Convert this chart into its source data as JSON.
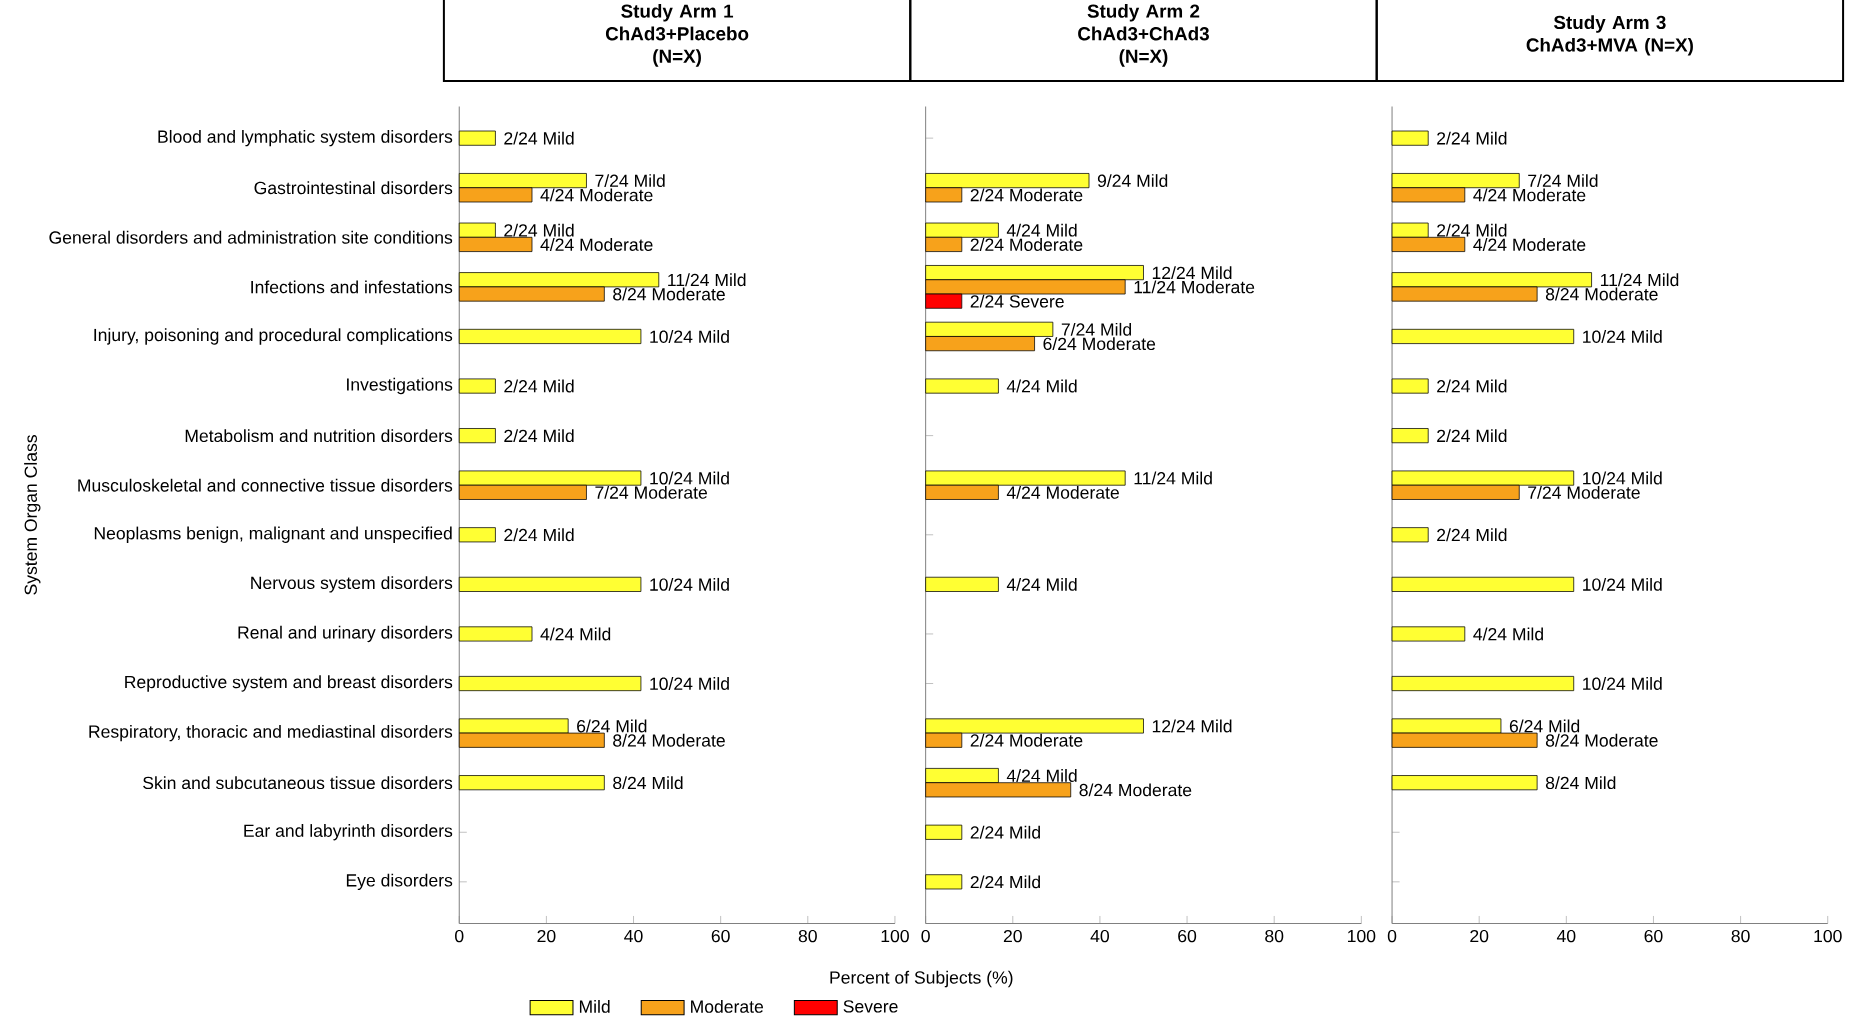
{
  "chart_data": [
    {
      "type": "bar",
      "orientation": "horizontal",
      "title": "Study Arm 1",
      "subtitle": "ChAd3+Placebo (N=X)",
      "ylabel": "System Organ Class",
      "categories": [
        "Blood and lymphatic system disorders",
        "Gastrointestinal disorders",
        "General disorders and administration site conditions",
        "Infections and infestations",
        "Injury, poisoning and procedural complications",
        "Investigations",
        "Metabolism and nutrition disorders",
        "Musculoskeletal and connective tissue disorders",
        "Neoplasms benign, malignant and unspecified",
        "Nervous system disorders",
        "Renal and urinary disorders",
        "Reproductive system and breast disorders",
        "Respiratory, thoracic and mediastinal disorders",
        "Skin and subcutaneous tissue disorders",
        "Ear and labyrinth disorders",
        "Eye disorders"
      ],
      "series": [
        {
          "color": "#ffff33",
          "values": [
            8.3,
            29.2,
            8.3,
            45.8,
            41.7,
            8.3,
            8.3,
            41.7,
            8.3,
            41.7,
            16.7,
            41.7,
            25,
            33.3,
            null,
            null
          ],
          "value_labels": [
            "2/24 Mild",
            "7/24 Mild",
            "2/24 Mild",
            "11/24 Mild",
            "10/24 Mild",
            "2/24 Mild",
            "2/24 Mild",
            "10/24 Mild",
            "2/24 Mild",
            "10/24 Mild",
            "4/24 Mild",
            "10/24 Mild",
            "6/24 Mild",
            "8/24 Mild",
            null,
            null
          ]
        },
        {
          "color": "#f7a21b",
          "values": [
            null,
            16.7,
            16.7,
            33.3,
            null,
            null,
            null,
            29.2,
            null,
            null,
            null,
            null,
            33.3,
            null,
            null,
            null
          ],
          "value_labels": [
            null,
            "4/24 Moderate",
            "4/24 Moderate",
            "8/24 Moderate",
            null,
            null,
            null,
            "7/24 Moderate",
            null,
            null,
            null,
            null,
            "8/24 Moderate",
            null,
            null,
            null
          ]
        }
      ],
      "xlim": [
        0,
        100
      ],
      "xticks": [
        0,
        20,
        40,
        60,
        80,
        100
      ]
    },
    {
      "type": "bar",
      "orientation": "horizontal",
      "title": "Study Arm 2",
      "subtitle": "ChAd3+ChAd3 (N=X)",
      "xlabel": "Percent of Subjects (%)",
      "categories": [
        null,
        null,
        null,
        null,
        null,
        null,
        null,
        null,
        null,
        null,
        null,
        null,
        null,
        null,
        null,
        null
      ],
      "series": [
        {
          "name": "Mild",
          "color": "#ffff33",
          "values": [
            null,
            37.5,
            16.7,
            50,
            29.2,
            16.7,
            null,
            45.8,
            null,
            16.7,
            null,
            null,
            50,
            16.7,
            8.3,
            8.3
          ],
          "value_labels": [
            null,
            "9/24 Mild",
            "4/24 Mild",
            "12/24 Mild",
            "7/24 Mild",
            "4/24 Mild",
            null,
            "11/24 Mild",
            null,
            "4/24 Mild",
            null,
            null,
            "12/24 Mild",
            "4/24 Mild",
            "2/24 Mild",
            "2/24 Mild"
          ]
        },
        {
          "name": "Moderate",
          "color": "#f7a21b",
          "values": [
            null,
            8.3,
            8.3,
            45.8,
            25,
            null,
            null,
            16.7,
            null,
            null,
            null,
            null,
            8.3,
            33.3,
            null,
            null
          ],
          "value_labels": [
            null,
            "2/24 Moderate",
            "2/24 Moderate",
            "11/24 Moderate",
            "6/24 Moderate",
            null,
            null,
            "4/24 Moderate",
            null,
            null,
            null,
            null,
            "2/24 Moderate",
            "8/24 Moderate",
            null,
            null
          ]
        },
        {
          "name": "Severe",
          "color": "#ff0000",
          "values": [
            null,
            null,
            null,
            8.3,
            null,
            null,
            null,
            null,
            null,
            null,
            null,
            null,
            null,
            null,
            null,
            null
          ],
          "value_labels": [
            null,
            null,
            null,
            "2/24 Severe",
            null,
            null,
            null,
            null,
            null,
            null,
            null,
            null,
            null,
            null,
            null,
            null
          ]
        }
      ],
      "xlim": [
        0,
        100
      ],
      "xticks": [
        0,
        20,
        40,
        60,
        80,
        100
      ],
      "tick_labels": "x",
      "legend": "bottom"
    },
    {
      "type": "bar",
      "orientation": "horizontal",
      "title": "Study Arm 3",
      "subtitle": "ChAd3+MVA (N=X)",
      "categories": [
        null,
        null,
        null,
        null,
        null,
        null,
        null,
        null,
        null,
        null,
        null,
        null,
        null,
        null,
        null,
        null
      ],
      "series": [
        {
          "color": "#ffff33",
          "values": [
            8.3,
            29.2,
            8.3,
            45.8,
            41.7,
            8.3,
            8.3,
            41.7,
            8.3,
            41.7,
            16.7,
            41.7,
            25,
            33.3,
            null,
            null
          ],
          "value_labels": [
            "2/24 Mild",
            "7/24 Mild",
            "2/24 Mild",
            "11/24 Mild",
            "10/24 Mild",
            "2/24 Mild",
            "2/24 Mild",
            "10/24 Mild",
            "2/24 Mild",
            "10/24 Mild",
            "4/24 Mild",
            "10/24 Mild",
            "6/24 Mild",
            "8/24 Mild",
            null,
            null
          ]
        },
        {
          "color": "#f7a21b",
          "values": [
            null,
            16.7,
            16.7,
            33.3,
            null,
            null,
            null,
            29.2,
            null,
            null,
            null,
            null,
            33.3,
            null,
            null,
            null
          ],
          "value_labels": [
            null,
            "4/24 Moderate",
            "4/24 Moderate",
            "8/24 Moderate",
            null,
            null,
            null,
            "7/24 Moderate",
            null,
            null,
            null,
            null,
            "8/24 Moderate",
            null,
            null,
            null
          ]
        }
      ],
      "xlim": [
        0,
        100
      ],
      "xticks": [
        0,
        20,
        40,
        60,
        80,
        100
      ],
      "tick_labels": "x"
    }
  ]
}
